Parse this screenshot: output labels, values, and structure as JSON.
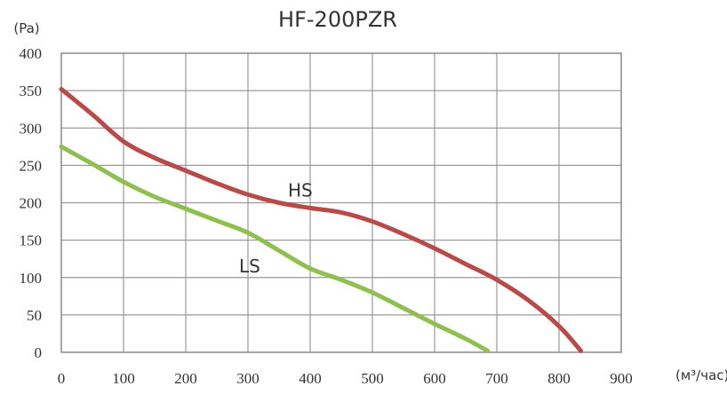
{
  "chart_data": {
    "type": "line",
    "title": "HF-200PZR",
    "ylabel": "(Pa)",
    "xlabel": "(м³/час)",
    "xlim": [
      0,
      900
    ],
    "ylim": [
      0,
      400
    ],
    "xticks": [
      "0",
      "100",
      "200",
      "300",
      "400",
      "500",
      "600",
      "700",
      "800",
      "900"
    ],
    "yticks": [
      "0",
      "50",
      "100",
      "150",
      "200",
      "250",
      "300",
      "350",
      "400"
    ],
    "grid": true,
    "series": [
      {
        "name": "HS",
        "color": "#b84a47",
        "x": [
          0,
          50,
          100,
          150,
          200,
          250,
          300,
          350,
          400,
          450,
          500,
          550,
          600,
          650,
          700,
          750,
          800,
          835
        ],
        "y": [
          352,
          318,
          282,
          260,
          243,
          226,
          211,
          200,
          193,
          187,
          175,
          158,
          139,
          118,
          97,
          70,
          35,
          2
        ]
      },
      {
        "name": "LS",
        "color": "#8fbf4f",
        "x": [
          0,
          50,
          100,
          150,
          200,
          250,
          300,
          350,
          400,
          450,
          500,
          550,
          600,
          650,
          685
        ],
        "y": [
          275,
          252,
          228,
          208,
          192,
          176,
          160,
          136,
          112,
          97,
          80,
          59,
          38,
          18,
          2
        ]
      }
    ]
  }
}
